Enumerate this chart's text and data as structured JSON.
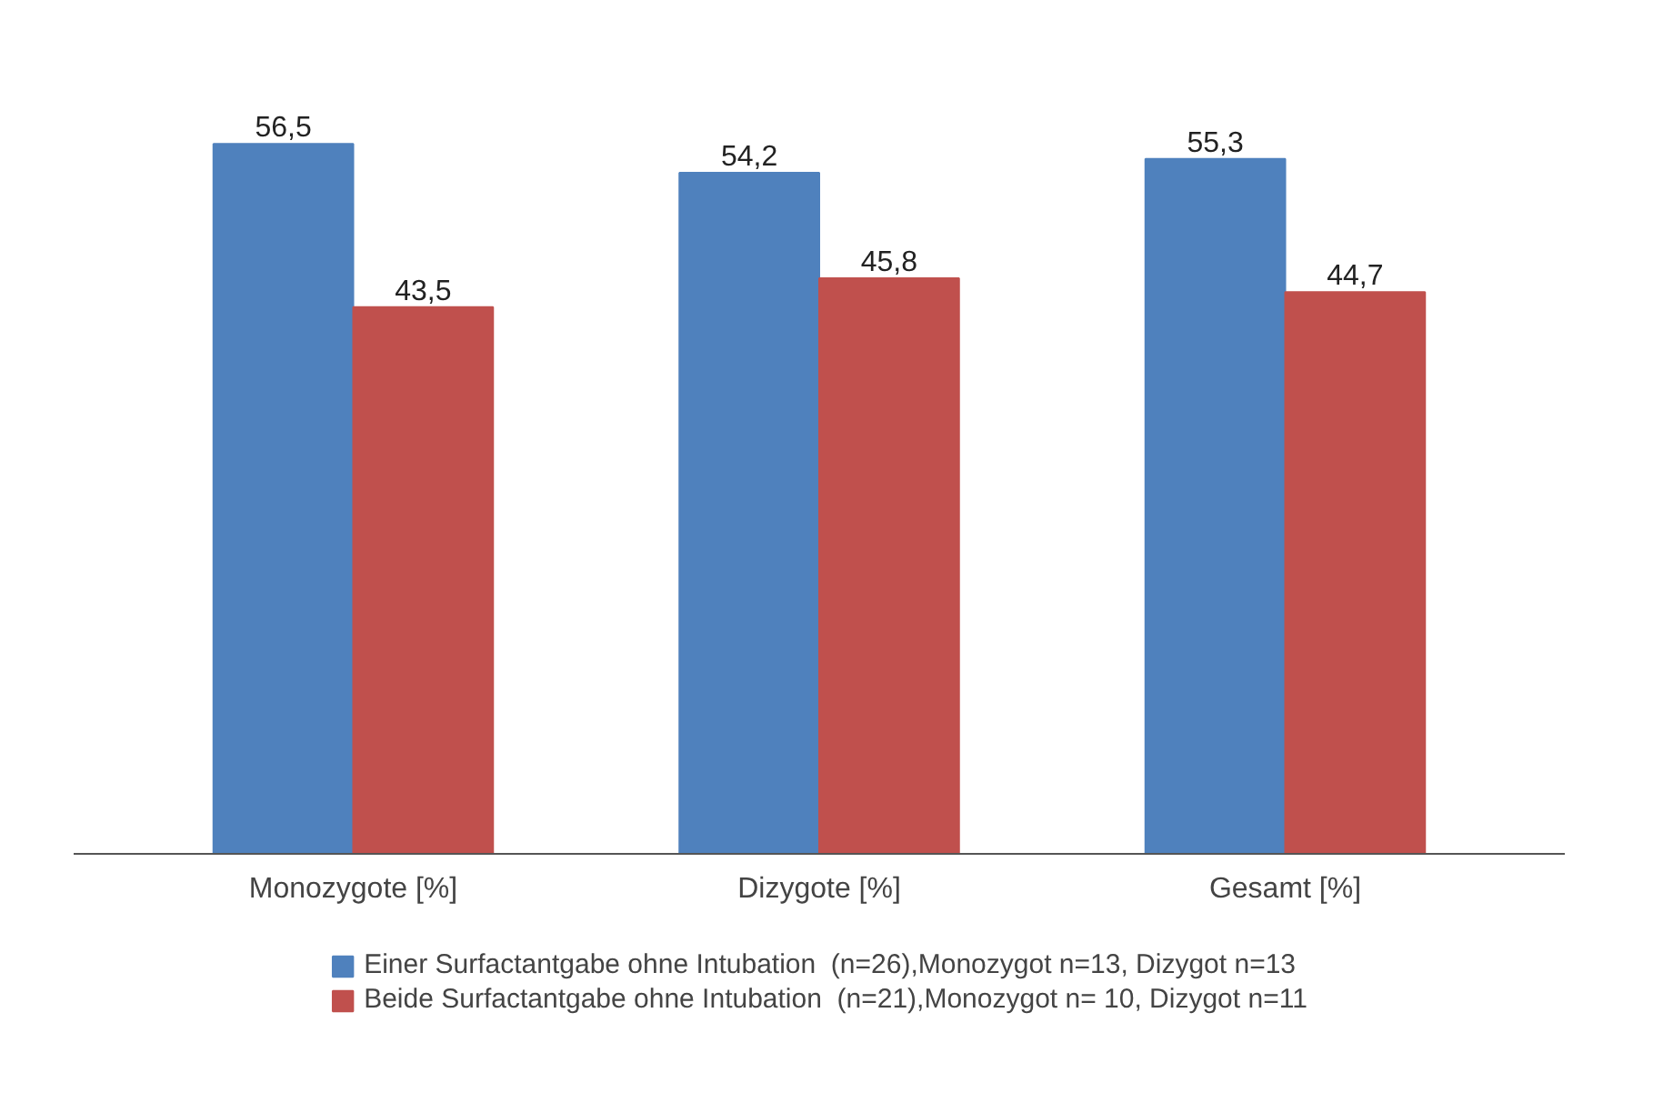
{
  "chart_data": {
    "type": "bar",
    "categories": [
      "Monozygote [%]",
      "Dizygote [%]",
      "Gesamt [%]"
    ],
    "series": [
      {
        "name": "Einer Surfactantgabe ohne Intubation  (n=26),Monozygot n=13, Dizygot n=13",
        "color": "#4f81bd",
        "values": [
          56.5,
          54.2,
          55.3
        ],
        "value_labels": [
          "56,5",
          "54,2",
          "55,3"
        ]
      },
      {
        "name": "Beide Surfactantgabe ohne Intubation  (n=21),Monozygot n= 10, Dizygot n=11",
        "color": "#c0504d",
        "values": [
          43.5,
          45.8,
          44.7
        ],
        "value_labels": [
          "43,5",
          "45,8",
          "44,7"
        ]
      }
    ],
    "legend": "bottom"
  }
}
